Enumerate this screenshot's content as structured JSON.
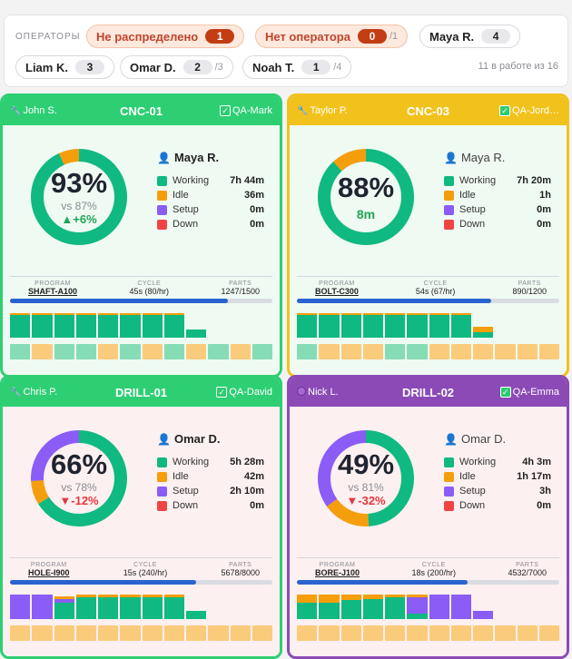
{
  "colors": {
    "working": "#10b981",
    "idle": "#f59e0b",
    "setup": "#8b5cf6",
    "down": "#ef4444",
    "shift_ok": "#86dcb4",
    "shift_idle": "#fbcb7c",
    "track": "#e5e7eb"
  },
  "topbar": {
    "label": "ОПЕРАТОРЫ",
    "chips": [
      {
        "name": "Не распределено",
        "count": "1",
        "limit": "",
        "warn": true
      },
      {
        "name": "Нет оператора",
        "count": "0",
        "limit": "/1",
        "warn": true
      },
      {
        "name": "Maya R.",
        "count": "4",
        "limit": "",
        "warn": false
      },
      {
        "name": "Liam K.",
        "count": "3",
        "limit": "",
        "warn": false
      },
      {
        "name": "Omar D.",
        "count": "2",
        "limit": "/3",
        "warn": false
      },
      {
        "name": "Noah T.",
        "count": "1",
        "limit": "/4",
        "warn": false
      }
    ],
    "in_work": "11 в работе из 16"
  },
  "cards": [
    {
      "tech": "John S.",
      "tech_icon": "wrench-icon",
      "machine": "CNC-01",
      "qa": "QA-Mark",
      "header_color": "#2dcf72",
      "body_color": "#effaf3",
      "border_color": "#2dcf72",
      "pct": "93%",
      "utilization": 93,
      "vs": "vs 87%",
      "delta": "▲+6%",
      "delta_dir": "up",
      "operator": "Maya R.",
      "operator_bold": true,
      "legend": [
        {
          "label": "Working",
          "value": "7h 44m"
        },
        {
          "label": "Idle",
          "value": "36m"
        },
        {
          "label": "Setup",
          "value": "0m"
        },
        {
          "label": "Down",
          "value": "0m"
        }
      ],
      "ring": [
        {
          "k": "working",
          "v": 0.93
        },
        {
          "k": "idle",
          "v": 0.07
        }
      ],
      "program_label": "PROGRAM",
      "program": "SHAFT-A100",
      "cycle_label": "CYCLE",
      "cycle": "45s (80/hr)",
      "parts_label": "PARTS",
      "parts": "1247/1500",
      "progress": 0.83,
      "bars": [
        [
          [
            "working",
            0.85
          ],
          [
            "idle",
            0.05
          ]
        ],
        [
          [
            "working",
            0.85
          ],
          [
            "idle",
            0.05
          ]
        ],
        [
          [
            "working",
            0.85
          ],
          [
            "idle",
            0.05
          ]
        ],
        [
          [
            "working",
            0.85
          ],
          [
            "idle",
            0.05
          ]
        ],
        [
          [
            "working",
            0.85
          ],
          [
            "idle",
            0.05
          ]
        ],
        [
          [
            "working",
            0.85
          ],
          [
            "idle",
            0.05
          ]
        ],
        [
          [
            "working",
            0.85
          ],
          [
            "idle",
            0.05
          ]
        ],
        [
          [
            "working",
            0.85
          ],
          [
            "idle",
            0.05
          ]
        ],
        [
          [
            "working",
            0.3
          ]
        ],
        [],
        [],
        []
      ],
      "shifts": [
        "ok",
        "idle",
        "ok",
        "ok",
        "idle",
        "ok",
        "idle",
        "ok",
        "idle",
        "ok",
        "idle",
        "ok"
      ]
    },
    {
      "tech": "Taylor P.",
      "tech_icon": "wrench-icon",
      "machine": "CNC-03",
      "qa": "QA-Jord…",
      "header_color": "#f2c21c",
      "body_color": "#effaf3",
      "border_color": "#f2c21c",
      "pct": "88%",
      "utilization": 88,
      "vs": "",
      "delta": "8m",
      "delta_dir": "plain",
      "operator": "Maya R.",
      "operator_bold": false,
      "legend": [
        {
          "label": "Working",
          "value": "7h 20m"
        },
        {
          "label": "Idle",
          "value": "1h"
        },
        {
          "label": "Setup",
          "value": "0m"
        },
        {
          "label": "Down",
          "value": "0m"
        }
      ],
      "ring": [
        {
          "k": "working",
          "v": 0.88
        },
        {
          "k": "idle",
          "v": 0.12
        }
      ],
      "program_label": "PROGRAM",
      "program": "BOLT-C300",
      "cycle_label": "CYCLE",
      "cycle": "54s (67/hr)",
      "parts_label": "PARTS",
      "parts": "890/1200",
      "progress": 0.74,
      "bars": [
        [
          [
            "working",
            0.85
          ],
          [
            "idle",
            0.05
          ]
        ],
        [
          [
            "working",
            0.85
          ],
          [
            "idle",
            0.05
          ]
        ],
        [
          [
            "working",
            0.85
          ],
          [
            "idle",
            0.05
          ]
        ],
        [
          [
            "working",
            0.85
          ],
          [
            "idle",
            0.05
          ]
        ],
        [
          [
            "working",
            0.85
          ],
          [
            "idle",
            0.05
          ]
        ],
        [
          [
            "working",
            0.85
          ],
          [
            "idle",
            0.05
          ]
        ],
        [
          [
            "working",
            0.85
          ],
          [
            "idle",
            0.05
          ]
        ],
        [
          [
            "working",
            0.85
          ],
          [
            "idle",
            0.05
          ]
        ],
        [
          [
            "working",
            0.2
          ],
          [
            "idle",
            0.2
          ]
        ],
        [],
        [],
        []
      ],
      "shifts": [
        "ok",
        "idle",
        "idle",
        "idle",
        "ok",
        "ok",
        "idle",
        "idle",
        "idle",
        "idle",
        "idle",
        "idle"
      ]
    },
    {
      "tech": "Chris P.",
      "tech_icon": "wrench-icon",
      "machine": "DRILL-01",
      "qa": "QA-David",
      "header_color": "#2dcf72",
      "body_color": "#fdf0f0",
      "border_color": "#2dcf72",
      "pct": "66%",
      "utilization": 66,
      "vs": "vs 78%",
      "delta": "▼-12%",
      "delta_dir": "down",
      "operator": "Omar D.",
      "operator_bold": true,
      "legend": [
        {
          "label": "Working",
          "value": "5h 28m"
        },
        {
          "label": "Idle",
          "value": "42m"
        },
        {
          "label": "Setup",
          "value": "2h 10m"
        },
        {
          "label": "Down",
          "value": "0m"
        }
      ],
      "ring": [
        {
          "k": "working",
          "v": 0.66
        },
        {
          "k": "idle",
          "v": 0.08
        },
        {
          "k": "setup",
          "v": 0.26
        }
      ],
      "program_label": "PROGRAM",
      "program": "HOLE-I900",
      "cycle_label": "CYCLE",
      "cycle": "15s (240/hr)",
      "parts_label": "PARTS",
      "parts": "5678/8000",
      "progress": 0.71,
      "bars": [
        [
          [
            "setup",
            0.9
          ]
        ],
        [
          [
            "setup",
            0.9
          ]
        ],
        [
          [
            "working",
            0.6
          ],
          [
            "setup",
            0.15
          ],
          [
            "idle",
            0.1
          ]
        ],
        [
          [
            "working",
            0.8
          ],
          [
            "idle",
            0.1
          ]
        ],
        [
          [
            "working",
            0.8
          ],
          [
            "idle",
            0.1
          ]
        ],
        [
          [
            "working",
            0.8
          ],
          [
            "idle",
            0.1
          ]
        ],
        [
          [
            "working",
            0.8
          ],
          [
            "idle",
            0.1
          ]
        ],
        [
          [
            "working",
            0.8
          ],
          [
            "idle",
            0.1
          ]
        ],
        [
          [
            "working",
            0.3
          ]
        ],
        [],
        [],
        []
      ],
      "shifts": [
        "idle",
        "idle",
        "idle",
        "idle",
        "idle",
        "idle",
        "idle",
        "idle",
        "idle",
        "idle",
        "idle",
        "idle"
      ]
    },
    {
      "tech": "Nick L.",
      "tech_icon": "setup-icon",
      "machine": "DRILL-02",
      "qa": "QA-Emma",
      "header_color": "#8c4ab6",
      "body_color": "#fdf0f0",
      "border_color": "#8c4ab6",
      "pct": "49%",
      "utilization": 49,
      "vs": "vs 81%",
      "delta": "▼-32%",
      "delta_dir": "down",
      "operator": "Omar D.",
      "operator_bold": false,
      "legend": [
        {
          "label": "Working",
          "value": "4h 3m"
        },
        {
          "label": "Idle",
          "value": "1h 17m"
        },
        {
          "label": "Setup",
          "value": "3h"
        },
        {
          "label": "Down",
          "value": "0m"
        }
      ],
      "ring": [
        {
          "k": "working",
          "v": 0.49
        },
        {
          "k": "idle",
          "v": 0.16
        },
        {
          "k": "setup",
          "v": 0.35
        }
      ],
      "program_label": "PROGRAM",
      "program": "BORE-J100",
      "cycle_label": "CYCLE",
      "cycle": "18s (200/hr)",
      "parts_label": "PARTS",
      "parts": "4532/7000",
      "progress": 0.65,
      "bars": [
        [
          [
            "working",
            0.6
          ],
          [
            "idle",
            0.3
          ]
        ],
        [
          [
            "working",
            0.6
          ],
          [
            "idle",
            0.3
          ]
        ],
        [
          [
            "working",
            0.7
          ],
          [
            "idle",
            0.2
          ]
        ],
        [
          [
            "working",
            0.75
          ],
          [
            "idle",
            0.15
          ]
        ],
        [
          [
            "working",
            0.8
          ],
          [
            "idle",
            0.1
          ]
        ],
        [
          [
            "working",
            0.2
          ],
          [
            "setup",
            0.6
          ],
          [
            "idle",
            0.1
          ]
        ],
        [
          [
            "setup",
            0.9
          ]
        ],
        [
          [
            "setup",
            0.9
          ]
        ],
        [
          [
            "setup",
            0.3
          ]
        ],
        [],
        [],
        []
      ],
      "shifts": [
        "idle",
        "idle",
        "idle",
        "idle",
        "idle",
        "idle",
        "idle",
        "idle",
        "idle",
        "idle",
        "idle",
        "idle"
      ]
    }
  ]
}
